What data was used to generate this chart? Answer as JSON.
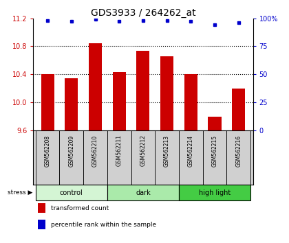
{
  "title": "GDS3933 / 264262_at",
  "samples": [
    "GSM562208",
    "GSM562209",
    "GSM562210",
    "GSM562211",
    "GSM562212",
    "GSM562213",
    "GSM562214",
    "GSM562215",
    "GSM562216"
  ],
  "red_values": [
    10.4,
    10.34,
    10.84,
    10.43,
    10.74,
    10.66,
    10.4,
    9.8,
    10.2
  ],
  "blue_values": [
    98,
    97,
    99,
    97,
    98,
    98,
    97,
    94,
    96
  ],
  "ylim_left": [
    9.6,
    11.2
  ],
  "yticks_left": [
    9.6,
    10.0,
    10.4,
    10.8,
    11.2
  ],
  "yticks_right": [
    0,
    25,
    50,
    75,
    100
  ],
  "groups": [
    {
      "label": "control",
      "start": 0,
      "end": 3,
      "color": "#d4f5d4"
    },
    {
      "label": "dark",
      "start": 3,
      "end": 6,
      "color": "#aaeaaa"
    },
    {
      "label": "high light",
      "start": 6,
      "end": 9,
      "color": "#44cc44"
    }
  ],
  "bar_color": "#cc0000",
  "dot_color": "#0000cc",
  "bar_width": 0.55,
  "bg_label": "#d0d0d0",
  "label_fontsize": 5.5,
  "title_fontsize": 10,
  "tick_fontsize": 7,
  "left_tick_color": "#cc0000",
  "right_tick_color": "#0000cc",
  "grid_yticks": [
    10.0,
    10.4,
    10.8
  ]
}
